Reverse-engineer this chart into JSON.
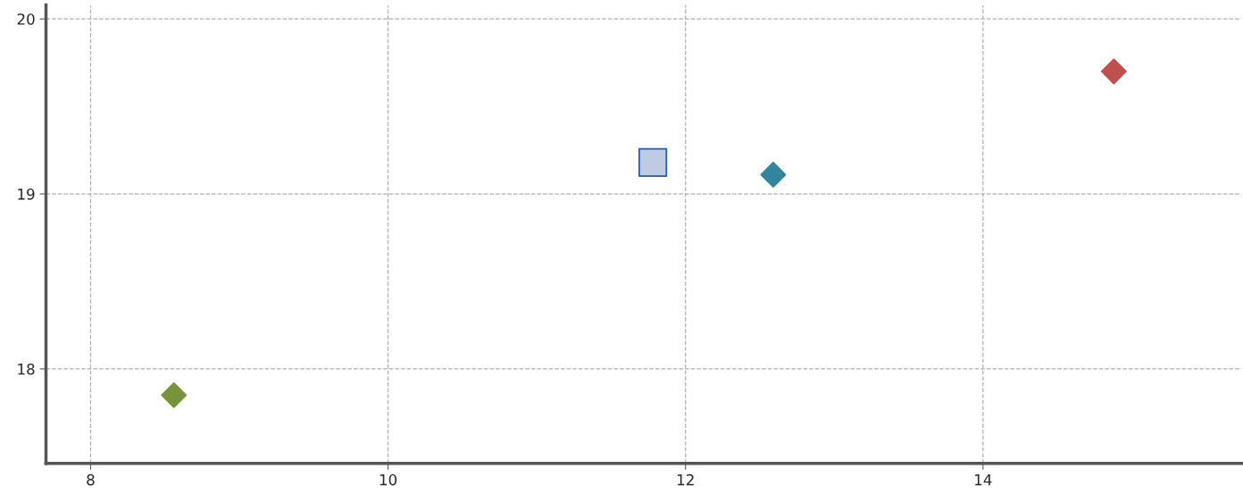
{
  "chart_data": {
    "type": "scatter",
    "xlim": [
      7.7,
      15.74
    ],
    "ylim": [
      17.46,
      20.08
    ],
    "xticks": [
      8,
      10,
      12,
      14
    ],
    "yticks": [
      18,
      19,
      20
    ],
    "grid": true,
    "line_style": "dashed",
    "legend": false,
    "series": [
      {
        "color": "#77933c",
        "marker": "diamond",
        "x": [
          8.56
        ],
        "values": [
          17.85
        ]
      },
      {
        "color": "#bfcbe0",
        "marker": "square",
        "x": [
          11.78
        ],
        "values": [
          19.18
        ]
      },
      {
        "color": "#31859c",
        "marker": "diamond",
        "x": [
          12.59
        ],
        "values": [
          19.11
        ]
      },
      {
        "color": "#c0504d",
        "marker": "diamond",
        "x": [
          14.88
        ],
        "values": [
          19.7
        ]
      }
    ]
  }
}
